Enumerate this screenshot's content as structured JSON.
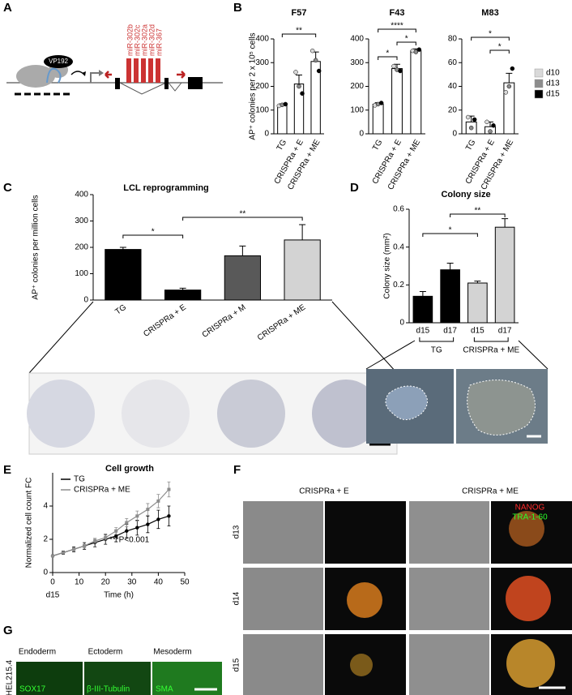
{
  "panel_letters": [
    "A",
    "B",
    "C",
    "D",
    "E",
    "F",
    "G"
  ],
  "panel_a": {
    "labels": [
      "VP192",
      "miR-302b",
      "miR-302c",
      "miR-302a",
      "miR-302d",
      "miR-367"
    ]
  },
  "chart_data": [
    {
      "type": "bar",
      "title": "F57",
      "y_label": "AP⁺ colonies per 2 x 10⁵ cells",
      "categories": [
        "TG",
        "CRISPRa + E",
        "CRISPRa + ME"
      ],
      "values": [
        120,
        210,
        305
      ],
      "errors": [
        6,
        38,
        40
      ],
      "points": [
        [
          118,
          122,
          125
        ],
        [
          260,
          200,
          170
        ],
        [
          350,
          310,
          265
        ]
      ],
      "point_colors": [
        "#d9d9d9",
        "#8c8c8c",
        "#000000"
      ],
      "bar_colors": [
        "#ffffff",
        "#ffffff",
        "#ffffff"
      ],
      "ylim": [
        0,
        400
      ],
      "yticks": [
        0,
        100,
        200,
        300,
        400
      ],
      "significance": [
        {
          "pair": [
            0,
            2
          ],
          "label": "**"
        }
      ]
    },
    {
      "type": "bar",
      "title": "F43",
      "categories": [
        "TG",
        "CRISPRa + E",
        "CRISPRa + ME"
      ],
      "values": [
        125,
        275,
        350
      ],
      "errors": [
        6,
        18,
        8
      ],
      "points": [
        [
          120,
          125,
          130
        ],
        [
          285,
          270,
          265
        ],
        [
          350,
          345,
          355
        ]
      ],
      "point_colors": [
        "#d9d9d9",
        "#8c8c8c",
        "#000000"
      ],
      "bar_colors": [
        "#ffffff",
        "#ffffff",
        "#ffffff"
      ],
      "ylim": [
        0,
        400
      ],
      "yticks": [
        0,
        100,
        200,
        300,
        400
      ],
      "significance": [
        {
          "pair": [
            0,
            2
          ],
          "label": "****"
        },
        {
          "pair": [
            0,
            1
          ],
          "label": "*"
        },
        {
          "pair": [
            1,
            2
          ],
          "label": "*"
        }
      ]
    },
    {
      "type": "bar",
      "title": "M83",
      "categories": [
        "TG",
        "CRISPRa + E",
        "CRISPRa + ME"
      ],
      "values": [
        10,
        6,
        43
      ],
      "errors": [
        5,
        4,
        8
      ],
      "points": [
        [
          14,
          5,
          12
        ],
        [
          10,
          2,
          7
        ],
        [
          35,
          40,
          55
        ]
      ],
      "point_colors": [
        "#d9d9d9",
        "#8c8c8c",
        "#000000"
      ],
      "bar_colors": [
        "#ffffff",
        "#ffffff",
        "#ffffff"
      ],
      "ylim": [
        0,
        80
      ],
      "yticks": [
        0,
        20,
        40,
        60,
        80
      ],
      "significance": [
        {
          "pair": [
            0,
            2
          ],
          "label": "*"
        },
        {
          "pair": [
            1,
            2
          ],
          "label": "*"
        }
      ],
      "legend": [
        {
          "name": "d10",
          "color": "#d9d9d9"
        },
        {
          "name": "d13",
          "color": "#8c8c8c"
        },
        {
          "name": "d15",
          "color": "#000000"
        }
      ]
    },
    {
      "type": "bar",
      "title": "LCL reprogramming",
      "y_label": "AP⁺ colonies per million cells",
      "categories": [
        "TG",
        "CRISPRa + E",
        "CRISPRa + M",
        "CRISPRa + ME"
      ],
      "values": [
        192,
        38,
        168,
        228
      ],
      "errors": [
        8,
        7,
        37,
        58
      ],
      "bar_colors": [
        "#000000",
        "#000000",
        "#595959",
        "#d3d3d3"
      ],
      "ylim": [
        0,
        400
      ],
      "yticks": [
        0,
        100,
        200,
        300,
        400
      ],
      "significance": [
        {
          "pair": [
            0,
            1
          ],
          "label": "*"
        },
        {
          "pair": [
            1,
            3
          ],
          "label": "**"
        }
      ]
    },
    {
      "type": "bar",
      "title": "Colony size",
      "y_label": "Colony size (mm²)",
      "categories": [
        "d15",
        "d17",
        "d15",
        "d17"
      ],
      "values": [
        0.14,
        0.28,
        0.21,
        0.505
      ],
      "errors": [
        0.025,
        0.035,
        0.01,
        0.045
      ],
      "bar_colors": [
        "#000000",
        "#000000",
        "#d3d3d3",
        "#d3d3d3"
      ],
      "groups": [
        {
          "label": "TG",
          "span": [
            0,
            1
          ]
        },
        {
          "label": "CRISPRa + ME",
          "span": [
            2,
            3
          ]
        }
      ],
      "ylim": [
        0,
        0.6
      ],
      "yticks": [
        0,
        0.2,
        0.4,
        0.6
      ],
      "significance": [
        {
          "pair": [
            0,
            2
          ],
          "label": "*"
        },
        {
          "pair": [
            1,
            3
          ],
          "label": "**"
        }
      ]
    },
    {
      "type": "line",
      "title": "Cell growth",
      "x_label": "Time (h)",
      "y_label": "Normalized cell count FC",
      "x_start_label": "d15",
      "annotation": "***P<0.001",
      "x": [
        0,
        4,
        8,
        12,
        16,
        20,
        24,
        28,
        32,
        36,
        40,
        44
      ],
      "series": [
        {
          "name": "TG",
          "color": "#000000",
          "values": [
            1,
            1.2,
            1.4,
            1.6,
            1.8,
            2.0,
            2.2,
            2.5,
            2.7,
            2.9,
            3.2,
            3.4
          ],
          "errors": [
            0.05,
            0.1,
            0.15,
            0.2,
            0.25,
            0.3,
            0.35,
            0.4,
            0.45,
            0.5,
            0.55,
            0.6
          ]
        },
        {
          "name": "CRISPRa + ME",
          "color": "#8c8c8c",
          "values": [
            1,
            1.2,
            1.4,
            1.6,
            1.9,
            2.1,
            2.5,
            3.0,
            3.4,
            3.8,
            4.3,
            5.0
          ],
          "errors": [
            0.05,
            0.05,
            0.1,
            0.1,
            0.15,
            0.15,
            0.2,
            0.25,
            0.3,
            0.35,
            0.4,
            0.45
          ]
        }
      ],
      "xlim": [
        0,
        50
      ],
      "xticks": [
        0,
        10,
        20,
        30,
        40,
        50
      ],
      "ylim": [
        0,
        6
      ],
      "yticks": [
        0,
        2,
        4
      ]
    }
  ],
  "panel_f": {
    "columns": [
      "CRISPRa + E",
      "CRISPRa + ME"
    ],
    "stains": [
      "NANOG",
      "TRA-1-60"
    ],
    "rows": [
      "d13",
      "d14",
      "d15"
    ]
  },
  "panel_g": {
    "cell_line": "HEL215.4",
    "columns": [
      "Endoderm",
      "Ectoderm",
      "Mesoderm"
    ],
    "stains": [
      "SOX17",
      "β-III-Tubulin",
      "SMA"
    ]
  }
}
